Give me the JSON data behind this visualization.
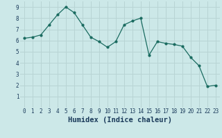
{
  "x": [
    0,
    1,
    2,
    3,
    4,
    5,
    6,
    7,
    8,
    9,
    10,
    11,
    12,
    13,
    14,
    15,
    16,
    17,
    18,
    19,
    20,
    21,
    22,
    23
  ],
  "y": [
    6.2,
    6.3,
    6.5,
    7.4,
    8.3,
    9.0,
    8.5,
    7.4,
    6.3,
    5.9,
    5.4,
    5.9,
    7.4,
    7.75,
    8.0,
    4.7,
    5.9,
    5.75,
    5.65,
    5.5,
    4.5,
    3.75,
    1.9,
    2.0
  ],
  "xlabel": "Humidex (Indice chaleur)",
  "ylim": [
    0,
    9.5
  ],
  "xlim": [
    -0.5,
    23.5
  ],
  "bg_color": "#cce8e8",
  "line_color": "#1a6b60",
  "grid_color": "#b8d4d4",
  "label_color": "#1a3a5a",
  "tick_fontsize": 5.5,
  "xlabel_fontsize": 7.5
}
